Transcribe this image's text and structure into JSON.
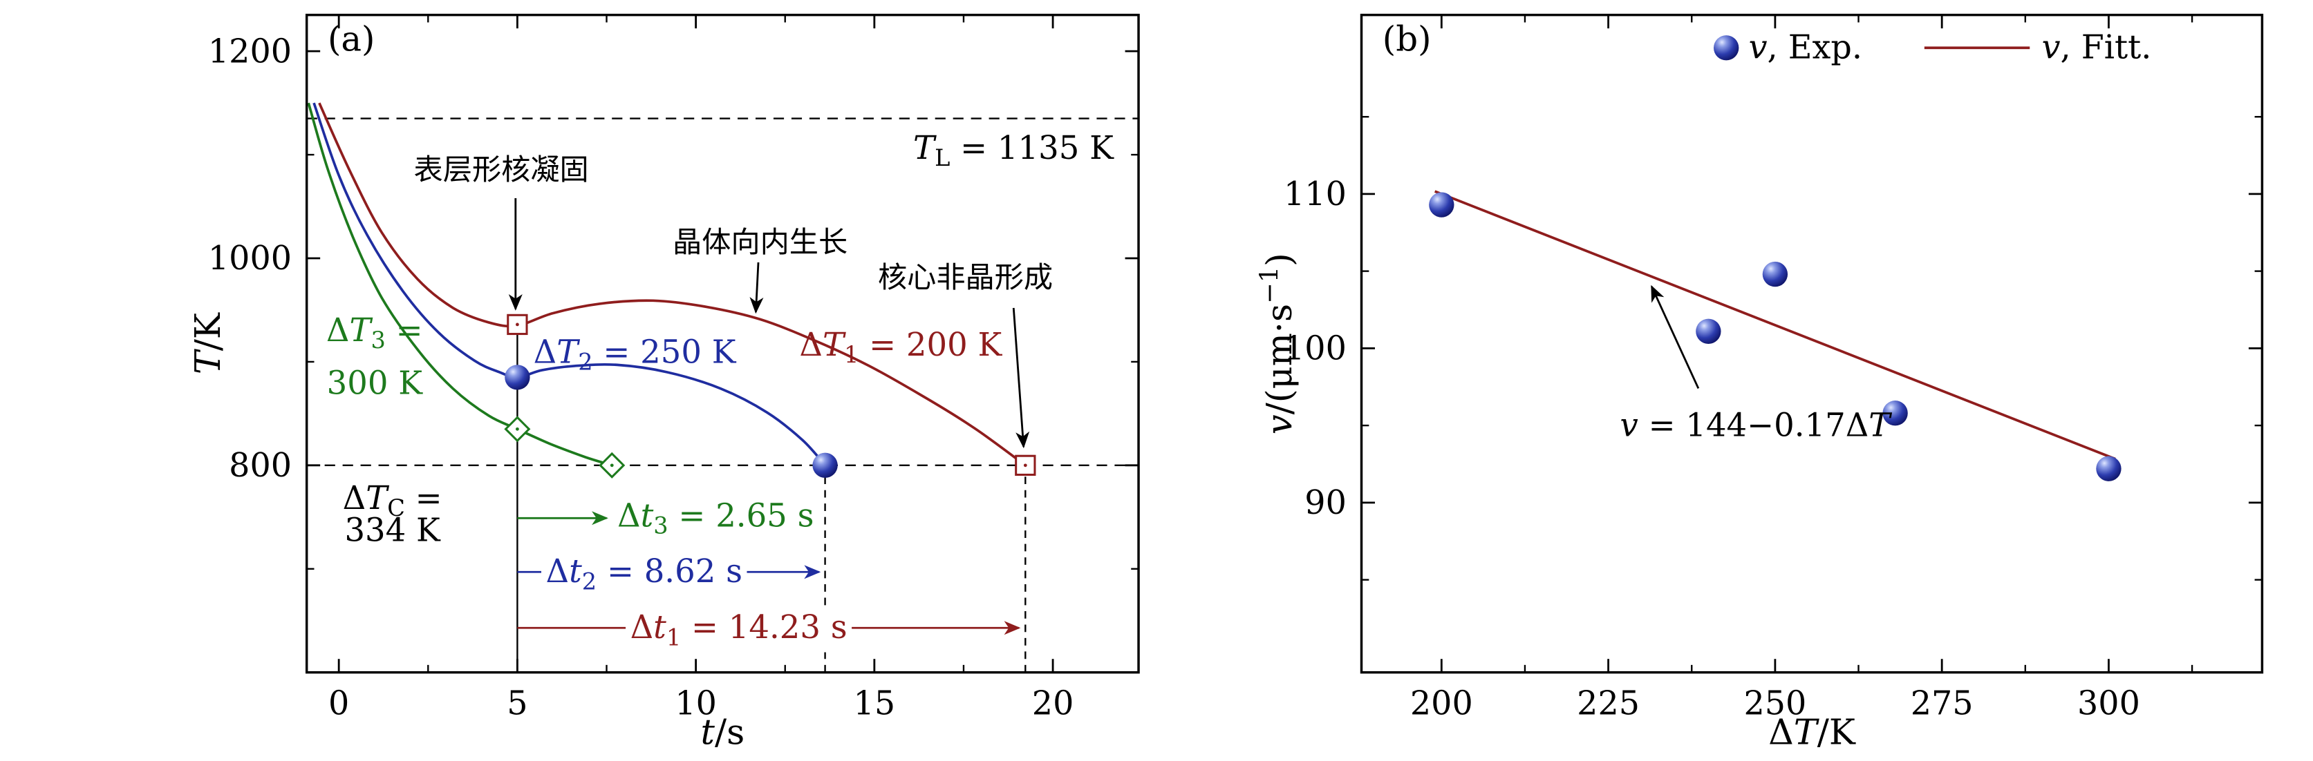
{
  "figure": {
    "background": "#ffffff",
    "colors": {
      "axis": "#000000",
      "red": "#8f1d1d",
      "blue": "#1f2da0",
      "green": "#1d7a1d",
      "white": "#ffffff",
      "sphere_stops": [
        "#dfe6ff",
        "#8b9ce6",
        "#2c3cae",
        "#0b1060"
      ]
    }
  },
  "chart_data": [
    {
      "key": "a",
      "type": "line",
      "panel_label": "(a)",
      "xlabel": [
        {
          "t": "t",
          "i": 1
        },
        {
          "t": "/s"
        }
      ],
      "ylabel": [
        {
          "t": "T",
          "i": 1
        },
        {
          "t": "/K"
        }
      ],
      "xlim": [
        -0.9,
        22.4
      ],
      "ylim": [
        600,
        1235
      ],
      "xticks": [
        0,
        5,
        10,
        15,
        20
      ],
      "yticks": [
        800,
        1000,
        1200
      ],
      "hlines": [
        {
          "key": "liquidus-line",
          "y": 1135
        },
        {
          "key": "undercooling-800K-line",
          "y": 800
        }
      ],
      "vlines": [
        {
          "key": "nucleation-time-line",
          "x": 5,
          "y1": 600,
          "y2": 944,
          "style": "solid"
        },
        {
          "key": "dt2-end-time-line",
          "x": 13.62,
          "y1": 600,
          "y2": 800,
          "style": "dashed"
        },
        {
          "key": "dt1-end-time-line",
          "x": 19.23,
          "y1": 600,
          "y2": 800,
          "style": "dashed"
        }
      ],
      "series": [
        {
          "key": "curve-dt1-200K",
          "color": "red",
          "points": [
            [
              -0.55,
              1150
            ],
            [
              0.3,
              1085
            ],
            [
              1.2,
              1025
            ],
            [
              2.2,
              980
            ],
            [
              3.2,
              952
            ],
            [
              4.2,
              938
            ],
            [
              5,
              935
            ],
            [
              6,
              947
            ],
            [
              7.3,
              956
            ],
            [
              8.8,
              959
            ],
            [
              10.3,
              953
            ],
            [
              11.8,
              941
            ],
            [
              13.3,
              921
            ],
            [
              14.8,
              897
            ],
            [
              16.3,
              868
            ],
            [
              17.8,
              836
            ],
            [
              19.23,
              800
            ]
          ],
          "marker": "square-open",
          "marker_points": [
            [
              5,
              936
            ],
            [
              19.23,
              800
            ]
          ]
        },
        {
          "key": "curve-dt2-250K",
          "color": "blue",
          "points": [
            [
              -0.7,
              1150
            ],
            [
              0,
              1080
            ],
            [
              0.8,
              1022
            ],
            [
              1.8,
              968
            ],
            [
              2.8,
              928
            ],
            [
              3.8,
              901
            ],
            [
              4.5,
              890
            ],
            [
              5,
              885
            ],
            [
              5.7,
              892
            ],
            [
              6.6,
              896
            ],
            [
              7.8,
              897
            ],
            [
              9.2,
              890
            ],
            [
              10.7,
              874
            ],
            [
              12,
              851
            ],
            [
              13,
              824
            ],
            [
              13.62,
              800
            ]
          ],
          "marker": "sphere",
          "marker_points": [
            [
              5,
              885
            ],
            [
              13.62,
              800
            ]
          ]
        },
        {
          "key": "curve-dt3-300K",
          "color": "green",
          "points": [
            [
              -0.85,
              1150
            ],
            [
              -0.3,
              1085
            ],
            [
              0.4,
              1020
            ],
            [
              1.2,
              962
            ],
            [
              2.2,
              912
            ],
            [
              3.2,
              874
            ],
            [
              4.2,
              848
            ],
            [
              5,
              835
            ],
            [
              5.9,
              821
            ],
            [
              6.9,
              808
            ],
            [
              7.65,
              800
            ]
          ],
          "marker": "diamond-open",
          "marker_points": [
            [
              5,
              835
            ],
            [
              7.65,
              800
            ]
          ]
        }
      ],
      "texts": [
        {
          "key": "liquidus-label",
          "color": "axis",
          "anchor": "end",
          "pos": [
            21.7,
            1096
          ],
          "segs": [
            {
              "t": "T",
              "i": 1
            },
            {
              "t": "L",
              "sub": 1
            },
            {
              "t": " = 1135 K"
            }
          ]
        },
        {
          "key": "critical-undercooling-label-1",
          "color": "axis",
          "anchor": "middle",
          "pos": [
            1.5,
            758
          ],
          "segs": [
            {
              "t": "Δ"
            },
            {
              "t": "T",
              "i": 1
            },
            {
              "t": "C",
              "sub": 1
            },
            {
              "t": " ="
            }
          ]
        },
        {
          "key": "critical-undercooling-label-2",
          "color": "axis",
          "anchor": "middle",
          "pos": [
            1.5,
            727
          ],
          "segs": [
            {
              "t": "334 K"
            }
          ]
        },
        {
          "key": "dt3-undercooling-label-1",
          "color": "green",
          "anchor": "middle",
          "pos": [
            1.0,
            920
          ],
          "segs": [
            {
              "t": "Δ"
            },
            {
              "t": "T",
              "i": 1
            },
            {
              "t": "3",
              "sub": 1
            },
            {
              "t": " ="
            }
          ]
        },
        {
          "key": "dt3-undercooling-label-2",
          "color": "green",
          "anchor": "middle",
          "pos": [
            1.0,
            869
          ],
          "segs": [
            {
              "t": "300 K"
            }
          ]
        },
        {
          "key": "dt2-undercooling-label",
          "color": "blue",
          "anchor": "start",
          "pos": [
            5.45,
            899
          ],
          "segs": [
            {
              "t": "Δ"
            },
            {
              "t": "T",
              "i": 1
            },
            {
              "t": "2",
              "sub": 1
            },
            {
              "t": " = 250 K"
            }
          ]
        },
        {
          "key": "dt1-undercooling-label",
          "color": "red",
          "anchor": "start",
          "pos": [
            12.9,
            906
          ],
          "segs": [
            {
              "t": "Δ"
            },
            {
              "t": "T",
              "i": 1
            },
            {
              "t": "1",
              "sub": 1
            },
            {
              "t": " = 200 K"
            }
          ]
        }
      ],
      "annotations": [
        {
          "key": "surface-nucleation",
          "text": "表层形核凝固",
          "color": "axis",
          "tpos": [
            4.55,
            1076
          ],
          "arrow": [
            [
              4.95,
              1058
            ],
            [
              4.95,
              951
            ]
          ]
        },
        {
          "key": "inward-growth",
          "text": "晶体向内生长",
          "color": "axis",
          "tpos": [
            11.8,
            1006
          ],
          "arrow": [
            [
              11.75,
              996
            ],
            [
              11.68,
              948
            ]
          ]
        },
        {
          "key": "amorphous-core",
          "text": "核心非晶形成",
          "color": "axis",
          "tpos": [
            17.55,
            972
          ],
          "arrow": [
            [
              18.9,
              952
            ],
            [
              19.18,
              818
            ]
          ]
        }
      ],
      "dt_arrows": [
        {
          "key": "dt3-time",
          "color": "green",
          "y": 749,
          "x1": 5,
          "x2": 7.5,
          "label_pos": [
            7.8,
            741
          ],
          "label_anchor": "start",
          "label_bg": false,
          "segs": [
            {
              "t": "Δ"
            },
            {
              "t": "t",
              "i": 1
            },
            {
              "t": "3",
              "sub": 1
            },
            {
              "t": " = 2.65 s"
            }
          ]
        },
        {
          "key": "dt2-time",
          "color": "blue",
          "y": 697,
          "x1": 5,
          "x2": 13.45,
          "label_pos": [
            8.55,
            687
          ],
          "label_anchor": "middle",
          "label_bg": true,
          "segs": [
            {
              "t": "Δ"
            },
            {
              "t": "t",
              "i": 1
            },
            {
              "t": "2",
              "sub": 1
            },
            {
              "t": " = 8.62 s"
            }
          ]
        },
        {
          "key": "dt1-time",
          "color": "red",
          "y": 643,
          "x1": 5,
          "x2": 19.05,
          "label_pos": [
            11.2,
            633
          ],
          "label_anchor": "middle",
          "label_bg": true,
          "segs": [
            {
              "t": "Δ"
            },
            {
              "t": "t",
              "i": 1
            },
            {
              "t": "1",
              "sub": 1
            },
            {
              "t": " = 14.23 s"
            }
          ]
        }
      ]
    },
    {
      "key": "b",
      "type": "scatter",
      "panel_label": "(b)",
      "xlabel": [
        {
          "t": "Δ"
        },
        {
          "t": "T",
          "i": 1
        },
        {
          "t": "/K"
        }
      ],
      "ylabel": [
        {
          "t": "v",
          "i": 1
        },
        {
          "t": "/(μm·s"
        },
        {
          "t": "−1",
          "sup": 1
        },
        {
          "t": ")"
        }
      ],
      "xlim": [
        188,
        323
      ],
      "ylim": [
        79,
        121.6
      ],
      "xticks": [
        200,
        225,
        250,
        275,
        300
      ],
      "yticks": [
        90,
        100,
        110
      ],
      "scatter": {
        "key": "velocity-exp",
        "marker": "sphere",
        "points": [
          [
            200,
            109.3
          ],
          [
            240,
            101.1
          ],
          [
            250,
            104.8
          ],
          [
            268,
            95.8
          ],
          [
            300,
            92.2
          ]
        ]
      },
      "fit_line": {
        "key": "velocity-fit",
        "color": "red",
        "p1": [
          199,
          110.17
        ],
        "p2": [
          301,
          92.83
        ]
      },
      "fit_equation": {
        "intercept": 144,
        "slope": -0.17
      },
      "texts": [
        {
          "key": "fit-equation-label",
          "color": "axis",
          "anchor": "middle",
          "pos": [
            247,
            94.3
          ],
          "segs": [
            {
              "t": "v",
              "i": 1
            },
            {
              "t": " = 144−0.17Δ"
            },
            {
              "t": "T",
              "i": 1
            }
          ]
        }
      ],
      "annotations": [
        {
          "key": "fit-equation-arrow",
          "color": "axis",
          "arrow": [
            [
              238.5,
              97.4
            ],
            [
              231.5,
              104.0
            ]
          ]
        }
      ],
      "legend": [
        {
          "key": "legend-exp",
          "type": "sphere",
          "segs": [
            {
              "t": "v",
              "i": 1
            },
            {
              "t": ", Exp."
            }
          ]
        },
        {
          "key": "legend-fit",
          "type": "line",
          "color": "red",
          "segs": [
            {
              "t": "v",
              "i": 1
            },
            {
              "t": ", Fitt."
            }
          ]
        }
      ]
    }
  ]
}
